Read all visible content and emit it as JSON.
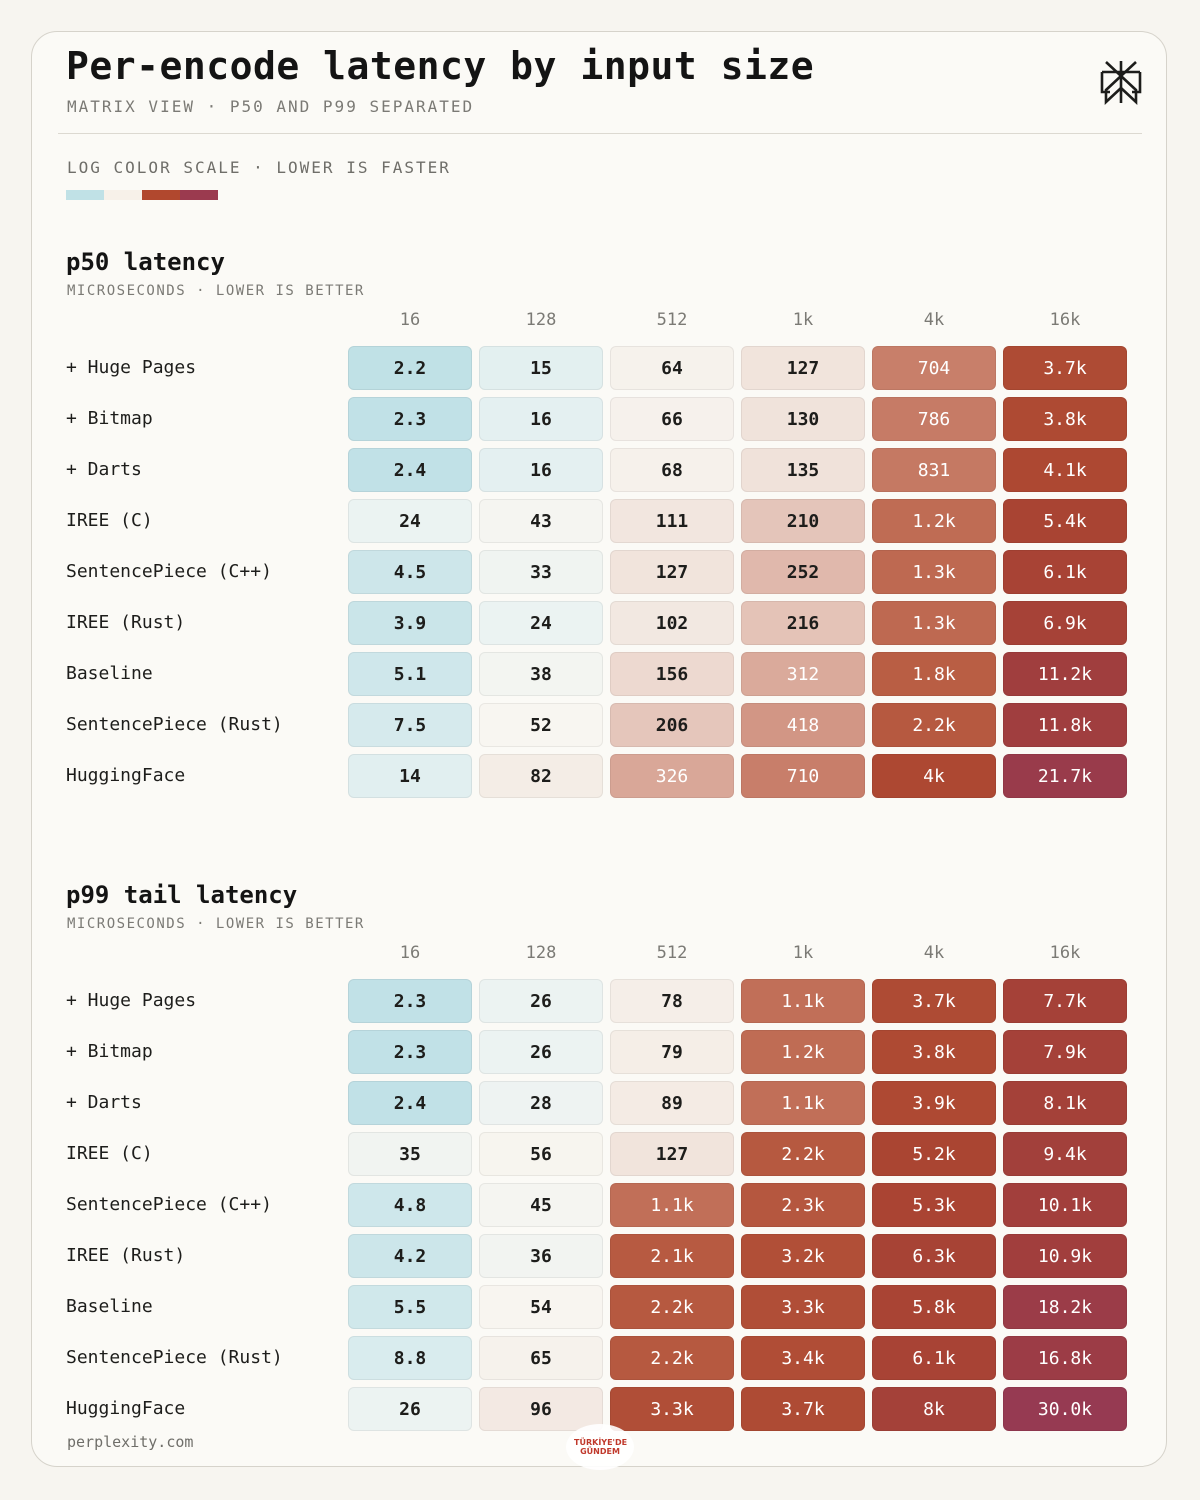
{
  "title": "Per-encode latency by input size",
  "subtitle": "MATRIX VIEW · P50 AND P99 SEPARATED",
  "scale_label": "LOG COLOR SCALE · LOWER IS FASTER",
  "legend_colors": [
    "#c0e1e6",
    "#f7f1e9",
    "#b1482e",
    "#9b3a4f"
  ],
  "footer": "perplexity.com",
  "stamp_text": "TÜRKİYE'DE GÜNDEM",
  "chart_data": [
    {
      "type": "heatmap",
      "title": "p50 latency",
      "subtitle": "MICROSECONDS · LOWER IS BETTER",
      "columns": [
        "16",
        "128",
        "512",
        "1k",
        "4k",
        "16k"
      ],
      "rows": [
        "+ Huge Pages",
        "+ Bitmap",
        "+ Darts",
        "IREE (C)",
        "SentencePiece (C++)",
        "IREE (Rust)",
        "Baseline",
        "SentencePiece (Rust)",
        "HuggingFace"
      ],
      "values": [
        [
          2.2,
          15,
          64,
          127,
          704,
          3700
        ],
        [
          2.3,
          16,
          66,
          130,
          786,
          3800
        ],
        [
          2.4,
          16,
          68,
          135,
          831,
          4100
        ],
        [
          24,
          43,
          111,
          210,
          1200,
          5400
        ],
        [
          4.5,
          33,
          127,
          252,
          1300,
          6100
        ],
        [
          3.9,
          24,
          102,
          216,
          1300,
          6900
        ],
        [
          5.1,
          38,
          156,
          312,
          1800,
          11200
        ],
        [
          7.5,
          52,
          206,
          418,
          2200,
          11800
        ],
        [
          14,
          82,
          326,
          710,
          4000,
          21700
        ]
      ],
      "labels": [
        [
          "2.2",
          "15",
          "64",
          "127",
          "704",
          "3.7k"
        ],
        [
          "2.3",
          "16",
          "66",
          "130",
          "786",
          "3.8k"
        ],
        [
          "2.4",
          "16",
          "68",
          "135",
          "831",
          "4.1k"
        ],
        [
          "24",
          "43",
          "111",
          "210",
          "1.2k",
          "5.4k"
        ],
        [
          "4.5",
          "33",
          "127",
          "252",
          "1.3k",
          "6.1k"
        ],
        [
          "3.9",
          "24",
          "102",
          "216",
          "1.3k",
          "6.9k"
        ],
        [
          "5.1",
          "38",
          "156",
          "312",
          "1.8k",
          "11.2k"
        ],
        [
          "7.5",
          "52",
          "206",
          "418",
          "2.2k",
          "11.8k"
        ],
        [
          "14",
          "82",
          "326",
          "710",
          "4k",
          "21.7k"
        ]
      ]
    },
    {
      "type": "heatmap",
      "title": "p99 tail latency",
      "subtitle": "MICROSECONDS · LOWER IS BETTER",
      "columns": [
        "16",
        "128",
        "512",
        "1k",
        "4k",
        "16k"
      ],
      "rows": [
        "+ Huge Pages",
        "+ Bitmap",
        "+ Darts",
        "IREE (C)",
        "SentencePiece (C++)",
        "IREE (Rust)",
        "Baseline",
        "SentencePiece (Rust)",
        "HuggingFace"
      ],
      "values": [
        [
          2.3,
          26,
          78,
          1100,
          3700,
          7700
        ],
        [
          2.3,
          26,
          79,
          1200,
          3800,
          7900
        ],
        [
          2.4,
          28,
          89,
          1100,
          3900,
          8100
        ],
        [
          35,
          56,
          127,
          2200,
          5200,
          9400
        ],
        [
          4.8,
          45,
          1100,
          2300,
          5300,
          10100
        ],
        [
          4.2,
          36,
          2100,
          3200,
          6300,
          10900
        ],
        [
          5.5,
          54,
          2200,
          3300,
          5800,
          18200
        ],
        [
          8.8,
          65,
          2200,
          3400,
          6100,
          16800
        ],
        [
          26,
          96,
          3300,
          3700,
          8000,
          30000
        ]
      ],
      "labels": [
        [
          "2.3",
          "26",
          "78",
          "1.1k",
          "3.7k",
          "7.7k"
        ],
        [
          "2.3",
          "26",
          "79",
          "1.2k",
          "3.8k",
          "7.9k"
        ],
        [
          "2.4",
          "28",
          "89",
          "1.1k",
          "3.9k",
          "8.1k"
        ],
        [
          "35",
          "56",
          "127",
          "2.2k",
          "5.2k",
          "9.4k"
        ],
        [
          "4.8",
          "45",
          "1.1k",
          "2.3k",
          "5.3k",
          "10.1k"
        ],
        [
          "4.2",
          "36",
          "2.1k",
          "3.2k",
          "6.3k",
          "10.9k"
        ],
        [
          "5.5",
          "54",
          "2.2k",
          "3.3k",
          "5.8k",
          "18.2k"
        ],
        [
          "8.8",
          "65",
          "2.2k",
          "3.4k",
          "6.1k",
          "16.8k"
        ],
        [
          "26",
          "96",
          "3.3k",
          "3.7k",
          "8k",
          "30.0k"
        ]
      ]
    }
  ]
}
